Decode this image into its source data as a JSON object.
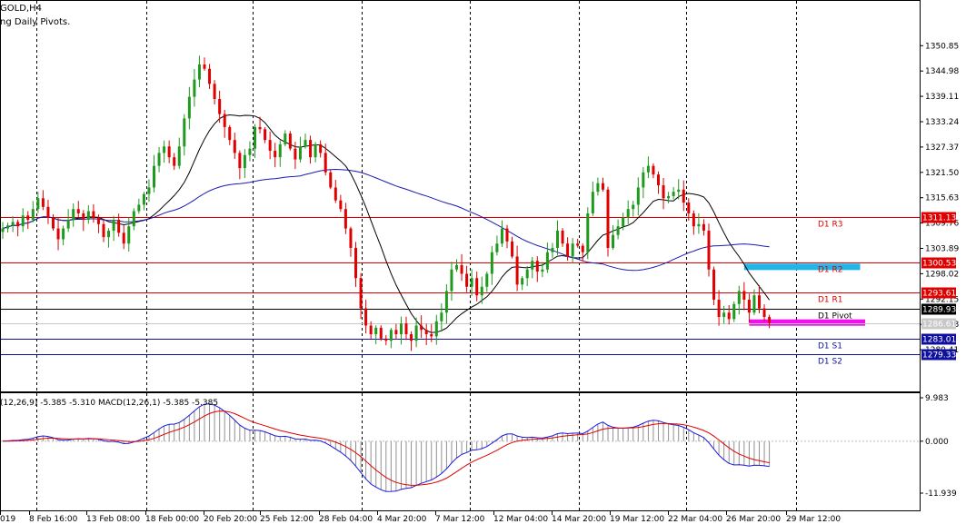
{
  "window": {
    "title": "GOLD,H4",
    "indicator_label": "ng Daily Pivots.",
    "macd_label": "(12,26,9) -5.385 -5.310 MACD(12,26,1) -5.385 -5.385",
    "first_date_fragment": "019"
  },
  "colors": {
    "bull": "#1f9a1f",
    "bear": "#e00000",
    "ma_fast": "#000000",
    "ma_slow": "#1a1ab0",
    "resistance": "#e00000",
    "support": "#1010a0",
    "pivot": "#000000",
    "zone_top": "#21b5e8",
    "zone_bottom": "#ee11ee",
    "macd_main": "#1a1ae0",
    "macd_signal": "#e00000",
    "histogram": "#909090"
  },
  "chart_data": [
    {
      "type": "candlestick",
      "symbol": "GOLD",
      "timeframe": "H4",
      "ylim": [
        1275.0,
        1353.0
      ],
      "y_ticks": [
        "1350.85",
        "1344.98",
        "1339.11",
        "1333.24",
        "1327.37",
        "1321.50",
        "1315.63",
        "1309.76",
        "1303.89",
        "1298.02",
        "1292.15",
        "1286.28",
        "1280.41"
      ],
      "x_labels": [
        "019",
        "8 Feb 16:00",
        "13 Feb 08:00",
        "18 Feb 00:00",
        "20 Feb 20:00",
        "25 Feb 12:00",
        "28 Feb 04:00",
        "4 Mar 20:00",
        "7 Mar 12:00",
        "12 Mar 04:00",
        "14 Mar 20:00",
        "19 Mar 12:00",
        "22 Mar 04:00",
        "26 Mar 20:00",
        "29 Mar 12:00"
      ],
      "pivot_levels": [
        {
          "name": "D1 R3",
          "value": "1311.13",
          "type": "resistance"
        },
        {
          "name": "D1 R2",
          "value": "1300.53",
          "type": "resistance"
        },
        {
          "name": "D1 R1",
          "value": "1293.61",
          "type": "resistance"
        },
        {
          "name": "D1 Pivot",
          "value": "1289.93",
          "type": "pivot"
        },
        {
          "name": "D1 S1",
          "value": "1283.01",
          "type": "support"
        },
        {
          "name": "D1 S2",
          "value": "1279.33",
          "type": "support"
        }
      ],
      "bid_price": "1286.61",
      "zones": [
        {
          "color": "zone_top",
          "price": 1299.6,
          "from_bar": 147,
          "to_bar": 170
        },
        {
          "color": "zone_bottom",
          "price": 1286.7,
          "from_bar": 148,
          "to_bar": 171
        }
      ],
      "ma_fast_period": 50,
      "ma_slow_period": 200,
      "close_series": [
        1308.5,
        1309.2,
        1310,
        1309,
        1311.5,
        1310.5,
        1313,
        1315.5,
        1313.5,
        1311,
        1308.5,
        1306,
        1308.5,
        1310.5,
        1313,
        1312,
        1310.5,
        1312.5,
        1311,
        1309.5,
        1306.5,
        1308,
        1310.5,
        1307.5,
        1305,
        1309,
        1312.5,
        1314,
        1316.5,
        1318,
        1323,
        1326,
        1327.5,
        1325,
        1323,
        1327.5,
        1334,
        1339,
        1343,
        1346.5,
        1345.5,
        1342,
        1338.5,
        1335,
        1332,
        1329,
        1326,
        1322.5,
        1325.5,
        1327,
        1332,
        1331.5,
        1329,
        1326.5,
        1325,
        1328,
        1330.5,
        1327,
        1324.5,
        1327.5,
        1329,
        1325,
        1328,
        1326,
        1321.5,
        1318,
        1315,
        1313,
        1308.5,
        1304,
        1297,
        1290,
        1286,
        1284,
        1285.5,
        1283,
        1282.5,
        1285,
        1284,
        1286.5,
        1284,
        1282.5,
        1286,
        1285,
        1284,
        1283.5,
        1287,
        1289,
        1294,
        1299,
        1300,
        1298,
        1295,
        1297,
        1293,
        1295,
        1298,
        1303,
        1305,
        1308.5,
        1305.5,
        1302,
        1295.5,
        1297,
        1299,
        1301,
        1298.5,
        1299,
        1303,
        1304,
        1308,
        1305,
        1302,
        1305,
        1304.5,
        1303,
        1312,
        1317,
        1319,
        1317.5,
        1304,
        1307,
        1309,
        1311,
        1313,
        1314,
        1318,
        1321.5,
        1323,
        1321,
        1318.5,
        1315.5,
        1316,
        1317,
        1317.5,
        1314.5,
        1312,
        1309,
        1309.5,
        1308,
        1299,
        1292,
        1288,
        1289,
        1287.5,
        1291,
        1294,
        1292,
        1289,
        1293,
        1290,
        1288,
        1286.6
      ],
      "macd_panel": {
        "y_ticks": [
          "9.983",
          "0.000",
          "-11.939"
        ],
        "ylim": [
          -11.939,
          9.983
        ]
      }
    }
  ]
}
